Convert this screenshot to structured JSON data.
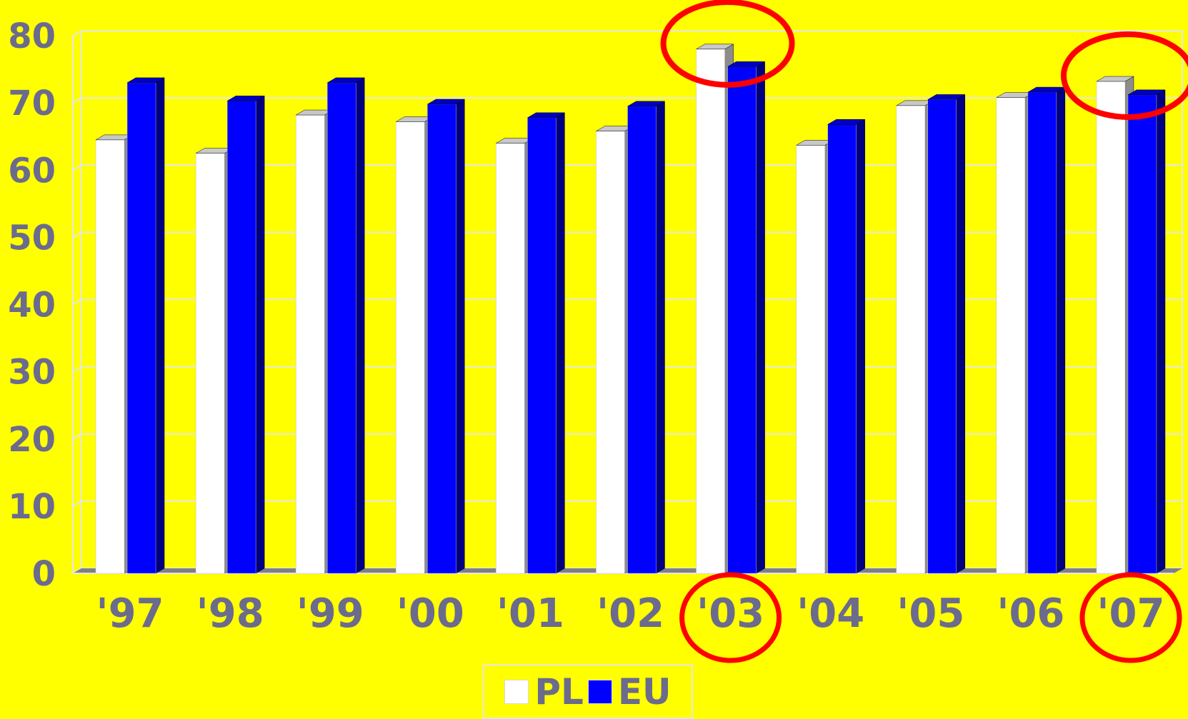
{
  "chart_data": {
    "type": "bar",
    "categories": [
      "'97",
      "'98",
      "'99",
      "'00",
      "'01",
      "'02",
      "'03",
      "'04",
      "'05",
      "'06",
      "'07"
    ],
    "series": [
      {
        "name": "PL",
        "values": [
          64.5,
          62.5,
          68.2,
          67.2,
          64.0,
          65.8,
          78.0,
          63.7,
          69.6,
          70.8,
          73.2
        ]
      },
      {
        "name": "EU",
        "values": [
          73.0,
          70.3,
          73.0,
          69.8,
          67.8,
          69.5,
          75.4,
          66.8,
          70.5,
          71.6,
          71.2
        ]
      }
    ],
    "yticks": [
      0,
      10,
      20,
      30,
      40,
      50,
      60,
      70,
      80
    ],
    "ylim": [
      0,
      80
    ],
    "grid": true,
    "legend": "bottom",
    "highlighted_categories": [
      "'03",
      "'07"
    ],
    "colors": {
      "background": "#ffff00",
      "PL": "#ffffff",
      "EU": "#0000ff",
      "text": "#6b6b8e",
      "highlight": "#ff0000",
      "grid": "#e6e6e6"
    }
  },
  "legend": {
    "items": [
      {
        "label": "PL"
      },
      {
        "label": "EU"
      }
    ]
  }
}
